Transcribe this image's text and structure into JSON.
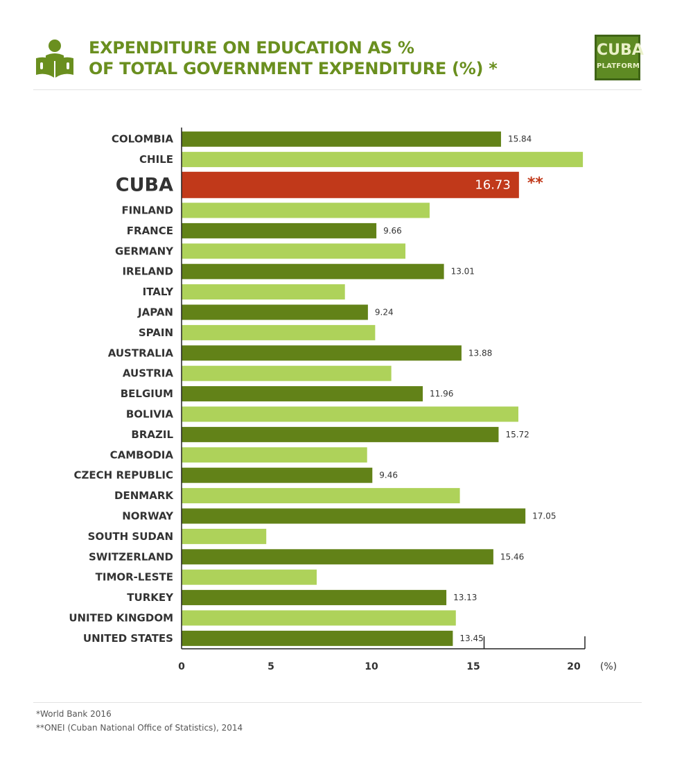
{
  "header": {
    "title_line1": "EXPENDITURE ON EDUCATION AS %",
    "title_line2": "OF TOTAL GOVERNMENT EXPENDITURE (%) *",
    "icon": "reading-person-icon",
    "logo_line1": "CUBA",
    "logo_line2": "PLATFORM"
  },
  "colors": {
    "title": "#6a8f1f",
    "bar_dark": "#628218",
    "bar_light": "#aed25a",
    "bar_highlight": "#c1391a",
    "logo_bg": "#5e8a23"
  },
  "chart_data": {
    "type": "bar",
    "orientation": "horizontal",
    "title": "EXPENDITURE ON EDUCATION AS % OF TOTAL GOVERNMENT EXPENDITURE (%) *",
    "xlabel": "(%)",
    "ylabel": "",
    "xlim": [
      0,
      20
    ],
    "xticks": [
      0,
      5,
      10,
      15,
      20
    ],
    "grid": false,
    "highlight": "CUBA",
    "highlight_note": "**",
    "categories": [
      "COLOMBIA",
      "CHILE",
      "CUBA",
      "FINLAND",
      "FRANCE",
      "GERMANY",
      "IRELAND",
      "ITALY",
      "JAPAN",
      "SPAIN",
      "AUSTRALIA",
      "AUSTRIA",
      "BELGIUM",
      "BOLIVIA",
      "BRAZIL",
      "CAMBODIA",
      "CZECH REPUBLIC",
      "DENMARK",
      "NORWAY",
      "SOUTH SUDAN",
      "SWITZERLAND",
      "TIMOR-LESTE",
      "TURKEY",
      "UNITED KINGDOM",
      "UNITED STATES"
    ],
    "values": [
      15.84,
      19.9,
      16.73,
      12.3,
      9.66,
      11.1,
      13.01,
      8.1,
      9.24,
      9.6,
      13.88,
      10.4,
      11.96,
      16.7,
      15.72,
      9.2,
      9.46,
      13.8,
      17.05,
      4.2,
      15.46,
      6.7,
      13.13,
      13.6,
      13.45
    ],
    "data_labels": [
      "15.84",
      "",
      "16.73",
      "",
      "9.66",
      "",
      "13.01",
      "",
      "9.24",
      "",
      "13.88",
      "",
      "11.96",
      "",
      "15.72",
      "",
      "9.46",
      "",
      "17.05",
      "",
      "15.46",
      "",
      "13.13",
      "",
      "13.45"
    ]
  },
  "footnotes": {
    "note1": "*World Bank 2016",
    "note2": "**ONEI (Cuban National Office of Statistics), 2014"
  }
}
